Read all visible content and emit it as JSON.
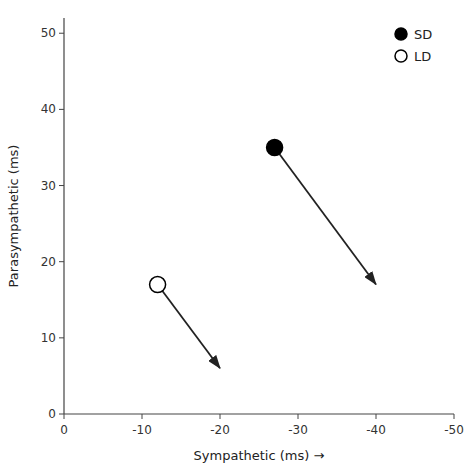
{
  "chart_data": {
    "type": "scatter",
    "xlabel": "Sympathetic (ms)  →",
    "ylabel": "Parasympathetic (ms)",
    "xlim": [
      0,
      -50
    ],
    "ylim": [
      0,
      52
    ],
    "xticks": [
      0,
      -10,
      -20,
      -30,
      -40,
      -50
    ],
    "yticks": [
      0,
      10,
      20,
      30,
      40,
      50
    ],
    "legend": "upper right",
    "series": [
      {
        "name": "SD",
        "color": "#000000",
        "marker": "o",
        "line_style": "arrow",
        "x": [
          -27,
          -40
        ],
        "values": [
          35,
          17
        ]
      },
      {
        "name": "LD",
        "color": "#ffffff",
        "marker": "o",
        "line_style": "arrow",
        "x": [
          -12,
          -20
        ],
        "values": [
          17,
          6
        ]
      }
    ]
  }
}
